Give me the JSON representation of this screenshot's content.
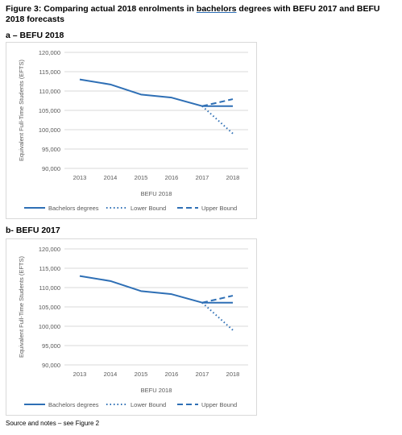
{
  "figure": {
    "title_before": "Figure 3: Comparing actual 2018 enrolments in ",
    "title_underlined": "bachelors",
    "title_after": " degrees with BEFU 2017 and BEFU 2018 forecasts"
  },
  "source_note": "Source and notes – see Figure 2",
  "colors": {
    "series": "#2e6fb5",
    "axis_text": "#595959",
    "grid": "#d9d9d9"
  },
  "chart_data": [
    {
      "panel_label": "a – BEFU 2018",
      "type": "line",
      "title": "",
      "xlabel": "BEFU 2018",
      "ylabel": "Equivalent Full-Time Students (EFTS)",
      "categories": [
        "2013",
        "2014",
        "2015",
        "2016",
        "2017",
        "2018"
      ],
      "ylim": [
        90000,
        120000
      ],
      "yticks": [
        "90,000",
        "95,000",
        "100,000",
        "105,000",
        "110,000",
        "115,000",
        "120,000"
      ],
      "grid": true,
      "legend": "bottom",
      "series": [
        {
          "name": "Bachelors degrees",
          "style": "solid",
          "values": [
            113000,
            111700,
            109100,
            108300,
            106100,
            106100
          ]
        },
        {
          "name": "Lower Bound",
          "style": "dotted",
          "values": [
            null,
            null,
            null,
            null,
            106100,
            99000
          ]
        },
        {
          "name": "Upper Bound",
          "style": "dashed",
          "values": [
            null,
            null,
            null,
            null,
            106100,
            107900
          ]
        }
      ]
    },
    {
      "panel_label": "b- BEFU 2017",
      "type": "line",
      "title": "",
      "xlabel": "BEFU 2018",
      "ylabel": "Equivalent Full-Time Students (EFTS)",
      "categories": [
        "2013",
        "2014",
        "2015",
        "2016",
        "2017",
        "2018"
      ],
      "ylim": [
        90000,
        120000
      ],
      "yticks": [
        "90,000",
        "95,000",
        "100,000",
        "105,000",
        "110,000",
        "115,000",
        "120,000"
      ],
      "grid": true,
      "legend": "bottom",
      "series": [
        {
          "name": "Bachelors degrees",
          "style": "solid",
          "values": [
            113000,
            111700,
            109100,
            108300,
            106100,
            106100
          ]
        },
        {
          "name": "Lower Bound",
          "style": "dotted",
          "values": [
            null,
            null,
            null,
            null,
            106100,
            99000
          ]
        },
        {
          "name": "Upper Bound",
          "style": "dashed",
          "values": [
            null,
            null,
            null,
            null,
            106100,
            107900
          ]
        }
      ]
    }
  ]
}
